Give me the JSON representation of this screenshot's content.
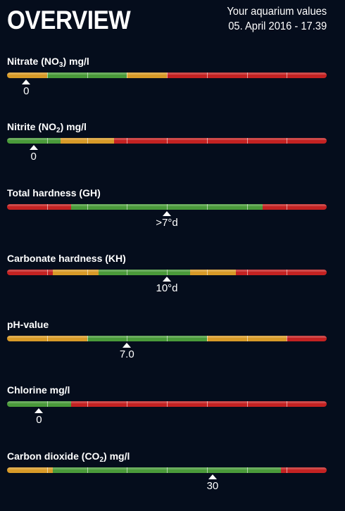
{
  "header": {
    "title": "OVERVIEW",
    "subtitle_line1": "Your aquarium values",
    "subtitle_line2": "05. April 2016 - 17.39"
  },
  "colors": {
    "green": "#4a9a3a",
    "orange": "#d89a28",
    "red": "#c42222",
    "background": "#050d1c"
  },
  "parameters": [
    {
      "label_pre": "Nitrate (NO",
      "label_sub": "3",
      "label_post": ") mg/l",
      "value": "0",
      "marker_fraction": 0.06,
      "segments": [
        {
          "color": "orange",
          "fraction": 0.125
        },
        {
          "color": "green",
          "fraction": 0.25
        },
        {
          "color": "orange",
          "fraction": 0.125
        },
        {
          "color": "red",
          "fraction": 0.5
        }
      ]
    },
    {
      "label_pre": "Nitrite (NO",
      "label_sub": "2",
      "label_post": ") mg/l",
      "value": "0",
      "marker_fraction": 0.083,
      "segments": [
        {
          "color": "green",
          "fraction": 0.167
        },
        {
          "color": "orange",
          "fraction": 0.167
        },
        {
          "color": "red",
          "fraction": 0.666
        }
      ]
    },
    {
      "label_pre": "Total hardness (GH)",
      "label_sub": "",
      "label_post": "",
      "value": ">7°d",
      "marker_fraction": 0.5,
      "segments": [
        {
          "color": "red",
          "fraction": 0.2
        },
        {
          "color": "green",
          "fraction": 0.6
        },
        {
          "color": "red",
          "fraction": 0.2
        }
      ]
    },
    {
      "label_pre": "Carbonate hardness (KH)",
      "label_sub": "",
      "label_post": "",
      "value": "10°d",
      "marker_fraction": 0.5,
      "segments": [
        {
          "color": "red",
          "fraction": 0.143
        },
        {
          "color": "orange",
          "fraction": 0.143
        },
        {
          "color": "green",
          "fraction": 0.286
        },
        {
          "color": "orange",
          "fraction": 0.143
        },
        {
          "color": "red",
          "fraction": 0.285
        }
      ]
    },
    {
      "label_pre": "pH-value",
      "label_sub": "",
      "label_post": "",
      "value": "7.0",
      "marker_fraction": 0.375,
      "segments": [
        {
          "color": "orange",
          "fraction": 0.25
        },
        {
          "color": "green",
          "fraction": 0.375
        },
        {
          "color": "orange",
          "fraction": 0.25
        },
        {
          "color": "red",
          "fraction": 0.125
        }
      ]
    },
    {
      "label_pre": "Chlorine mg/l",
      "label_sub": "",
      "label_post": "",
      "value": "0",
      "marker_fraction": 0.1,
      "segments": [
        {
          "color": "green",
          "fraction": 0.2
        },
        {
          "color": "red",
          "fraction": 0.8
        }
      ]
    },
    {
      "label_pre": "Carbon dioxide (CO",
      "label_sub": "2",
      "label_post": ") mg/l",
      "value": "30",
      "marker_fraction": 0.643,
      "segments": [
        {
          "color": "orange",
          "fraction": 0.143
        },
        {
          "color": "green",
          "fraction": 0.714
        },
        {
          "color": "red",
          "fraction": 0.143
        }
      ]
    }
  ]
}
